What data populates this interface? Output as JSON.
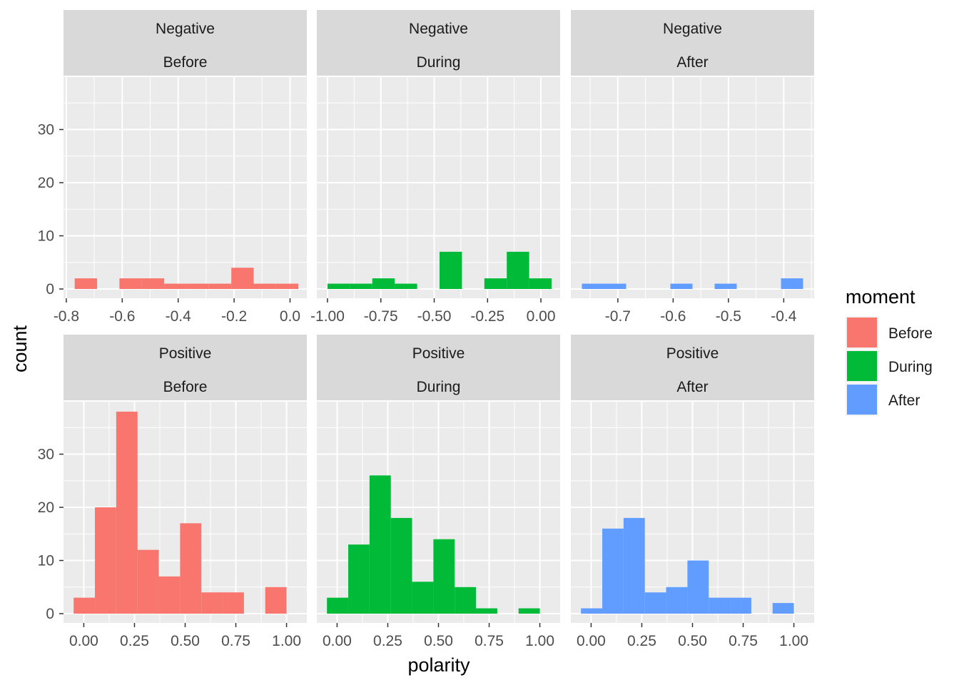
{
  "axes": {
    "xlabel": "polarity",
    "ylabel": "count"
  },
  "legend": {
    "title": "moment",
    "placement": "right",
    "items": [
      {
        "label": "Before",
        "color": "#F8766D"
      },
      {
        "label": "During",
        "color": "#00BA38"
      },
      {
        "label": "After",
        "color": "#619CFF"
      }
    ]
  },
  "colors": {
    "panel_bg": "#EBEBEB",
    "strip_bg": "#D9D9D9",
    "grid_major": "#FFFFFF",
    "text": "#1A1A1A",
    "tick_text": "#4D4D4D"
  },
  "chart_data": {
    "type": "histogram",
    "grid": true,
    "shared_y": true,
    "ylim": [
      0,
      40
    ],
    "yticks": [
      0,
      10,
      20,
      30
    ],
    "facet_rows": [
      "Negative",
      "Positive"
    ],
    "facet_cols": [
      "Before",
      "During",
      "After"
    ],
    "panels": [
      {
        "strip": [
          "Negative",
          "Before"
        ],
        "moment": "Before",
        "xlim": [
          -0.81,
          0.06
        ],
        "xticks": [
          -0.8,
          -0.6,
          -0.4,
          -0.2,
          0.0
        ],
        "xtick_labels": [
          "-0.8",
          "-0.6",
          "-0.4",
          "-0.2",
          "0.0"
        ],
        "bins": [
          {
            "x0": -0.77,
            "x1": -0.69,
            "count": 2
          },
          {
            "x0": -0.61,
            "x1": -0.53,
            "count": 2
          },
          {
            "x0": -0.53,
            "x1": -0.45,
            "count": 2
          },
          {
            "x0": -0.45,
            "x1": -0.37,
            "count": 1
          },
          {
            "x0": -0.37,
            "x1": -0.29,
            "count": 1
          },
          {
            "x0": -0.29,
            "x1": -0.21,
            "count": 1
          },
          {
            "x0": -0.21,
            "x1": -0.13,
            "count": 4
          },
          {
            "x0": -0.13,
            "x1": -0.05,
            "count": 1
          },
          {
            "x0": -0.05,
            "x1": 0.03,
            "count": 1
          }
        ]
      },
      {
        "strip": [
          "Negative",
          "During"
        ],
        "moment": "During",
        "xlim": [
          -1.05,
          0.09
        ],
        "xticks": [
          -1.0,
          -0.75,
          -0.5,
          -0.25,
          0.0
        ],
        "xtick_labels": [
          "-1.00",
          "-0.75",
          "-0.50",
          "-0.25",
          "0.00"
        ],
        "bins": [
          {
            "x0": -1.0,
            "x1": -0.895,
            "count": 1
          },
          {
            "x0": -0.895,
            "x1": -0.79,
            "count": 1
          },
          {
            "x0": -0.79,
            "x1": -0.685,
            "count": 2
          },
          {
            "x0": -0.685,
            "x1": -0.58,
            "count": 1
          },
          {
            "x0": -0.475,
            "x1": -0.37,
            "count": 7
          },
          {
            "x0": -0.265,
            "x1": -0.16,
            "count": 2
          },
          {
            "x0": -0.16,
            "x1": -0.055,
            "count": 7
          },
          {
            "x0": -0.055,
            "x1": 0.05,
            "count": 2
          }
        ]
      },
      {
        "strip": [
          "Negative",
          "After"
        ],
        "moment": "After",
        "xlim": [
          -0.785,
          -0.345
        ],
        "xticks": [
          -0.7,
          -0.6,
          -0.5,
          -0.4
        ],
        "xtick_labels": [
          "-0.7",
          "-0.6",
          "-0.5",
          "-0.4"
        ],
        "bins": [
          {
            "x0": -0.765,
            "x1": -0.725,
            "count": 1
          },
          {
            "x0": -0.725,
            "x1": -0.685,
            "count": 1
          },
          {
            "x0": -0.605,
            "x1": -0.565,
            "count": 1
          },
          {
            "x0": -0.525,
            "x1": -0.485,
            "count": 1
          },
          {
            "x0": -0.405,
            "x1": -0.365,
            "count": 2
          }
        ]
      },
      {
        "strip": [
          "Positive",
          "Before"
        ],
        "moment": "Before",
        "xlim": [
          -0.1,
          1.1
        ],
        "xticks": [
          0.0,
          0.25,
          0.5,
          0.75,
          1.0
        ],
        "xtick_labels": [
          "0.00",
          "0.25",
          "0.50",
          "0.75",
          "1.00"
        ],
        "bins": [
          {
            "x0": -0.05,
            "x1": 0.055,
            "count": 3
          },
          {
            "x0": 0.055,
            "x1": 0.16,
            "count": 20
          },
          {
            "x0": 0.16,
            "x1": 0.265,
            "count": 38
          },
          {
            "x0": 0.265,
            "x1": 0.37,
            "count": 12
          },
          {
            "x0": 0.37,
            "x1": 0.475,
            "count": 7
          },
          {
            "x0": 0.475,
            "x1": 0.58,
            "count": 17
          },
          {
            "x0": 0.58,
            "x1": 0.685,
            "count": 4
          },
          {
            "x0": 0.685,
            "x1": 0.79,
            "count": 4
          },
          {
            "x0": 0.895,
            "x1": 1.0,
            "count": 5
          }
        ]
      },
      {
        "strip": [
          "Positive",
          "During"
        ],
        "moment": "During",
        "xlim": [
          -0.1,
          1.1
        ],
        "xticks": [
          0.0,
          0.25,
          0.5,
          0.75,
          1.0
        ],
        "xtick_labels": [
          "0.00",
          "0.25",
          "0.50",
          "0.75",
          "1.00"
        ],
        "bins": [
          {
            "x0": -0.05,
            "x1": 0.055,
            "count": 3
          },
          {
            "x0": 0.055,
            "x1": 0.16,
            "count": 13
          },
          {
            "x0": 0.16,
            "x1": 0.265,
            "count": 26
          },
          {
            "x0": 0.265,
            "x1": 0.37,
            "count": 18
          },
          {
            "x0": 0.37,
            "x1": 0.475,
            "count": 6
          },
          {
            "x0": 0.475,
            "x1": 0.58,
            "count": 14
          },
          {
            "x0": 0.58,
            "x1": 0.685,
            "count": 5
          },
          {
            "x0": 0.685,
            "x1": 0.79,
            "count": 1
          },
          {
            "x0": 0.895,
            "x1": 1.0,
            "count": 1
          }
        ]
      },
      {
        "strip": [
          "Positive",
          "After"
        ],
        "moment": "After",
        "xlim": [
          -0.1,
          1.1
        ],
        "xticks": [
          0.0,
          0.25,
          0.5,
          0.75,
          1.0
        ],
        "xtick_labels": [
          "0.00",
          "0.25",
          "0.50",
          "0.75",
          "1.00"
        ],
        "bins": [
          {
            "x0": -0.05,
            "x1": 0.055,
            "count": 1
          },
          {
            "x0": 0.055,
            "x1": 0.16,
            "count": 16
          },
          {
            "x0": 0.16,
            "x1": 0.265,
            "count": 18
          },
          {
            "x0": 0.265,
            "x1": 0.37,
            "count": 4
          },
          {
            "x0": 0.37,
            "x1": 0.475,
            "count": 5
          },
          {
            "x0": 0.475,
            "x1": 0.58,
            "count": 10
          },
          {
            "x0": 0.58,
            "x1": 0.685,
            "count": 3
          },
          {
            "x0": 0.685,
            "x1": 0.79,
            "count": 3
          },
          {
            "x0": 0.895,
            "x1": 1.0,
            "count": 2
          }
        ]
      }
    ]
  }
}
